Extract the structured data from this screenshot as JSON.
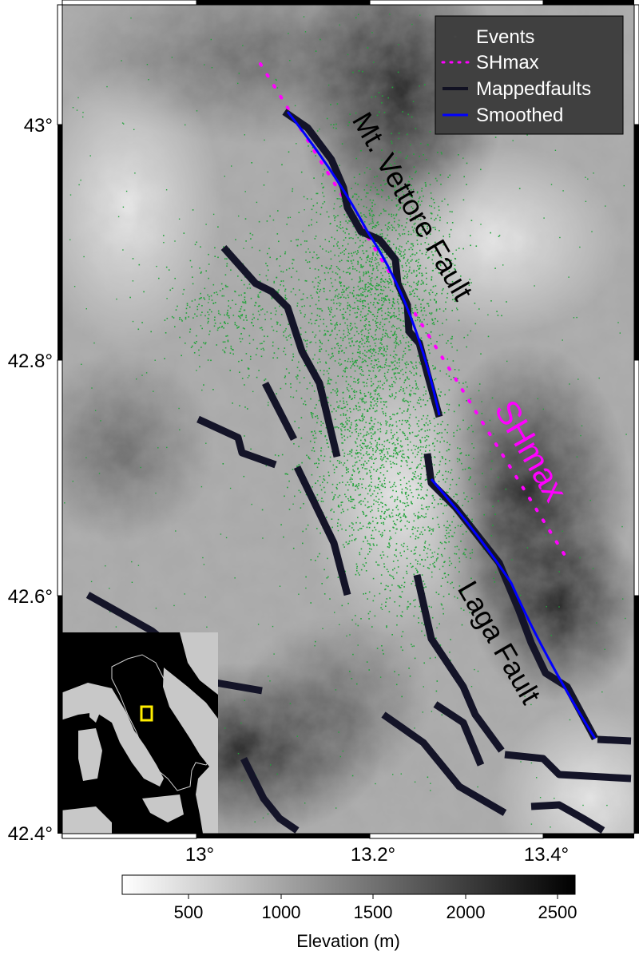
{
  "map": {
    "x_ticks": [
      "13°",
      "13.2°",
      "13.4°"
    ],
    "y_ticks": [
      "43°",
      "42.8°",
      "42.6°",
      "42.4°"
    ],
    "labels": {
      "vettore": "Mt. Vettore Fault",
      "laga": "Laga Fault",
      "shmax": "SHmax"
    }
  },
  "legend": {
    "items": [
      {
        "label": "Events",
        "color": "#444444"
      },
      {
        "label": "SHmax",
        "color": "#ff00ff"
      },
      {
        "label": "Mappedfaults",
        "color": "#111122"
      },
      {
        "label": "Smoothed",
        "color": "#0000ff"
      }
    ]
  },
  "colorbar": {
    "ticks": [
      "500",
      "1000",
      "1500",
      "2000",
      "2500"
    ],
    "label": "Elevation (m)"
  },
  "colors": {
    "events": "#22a33a",
    "shmax": "#ff00ff",
    "faults": "#141428",
    "smoothed": "#0000ff",
    "inset_box": "#ffee00"
  }
}
